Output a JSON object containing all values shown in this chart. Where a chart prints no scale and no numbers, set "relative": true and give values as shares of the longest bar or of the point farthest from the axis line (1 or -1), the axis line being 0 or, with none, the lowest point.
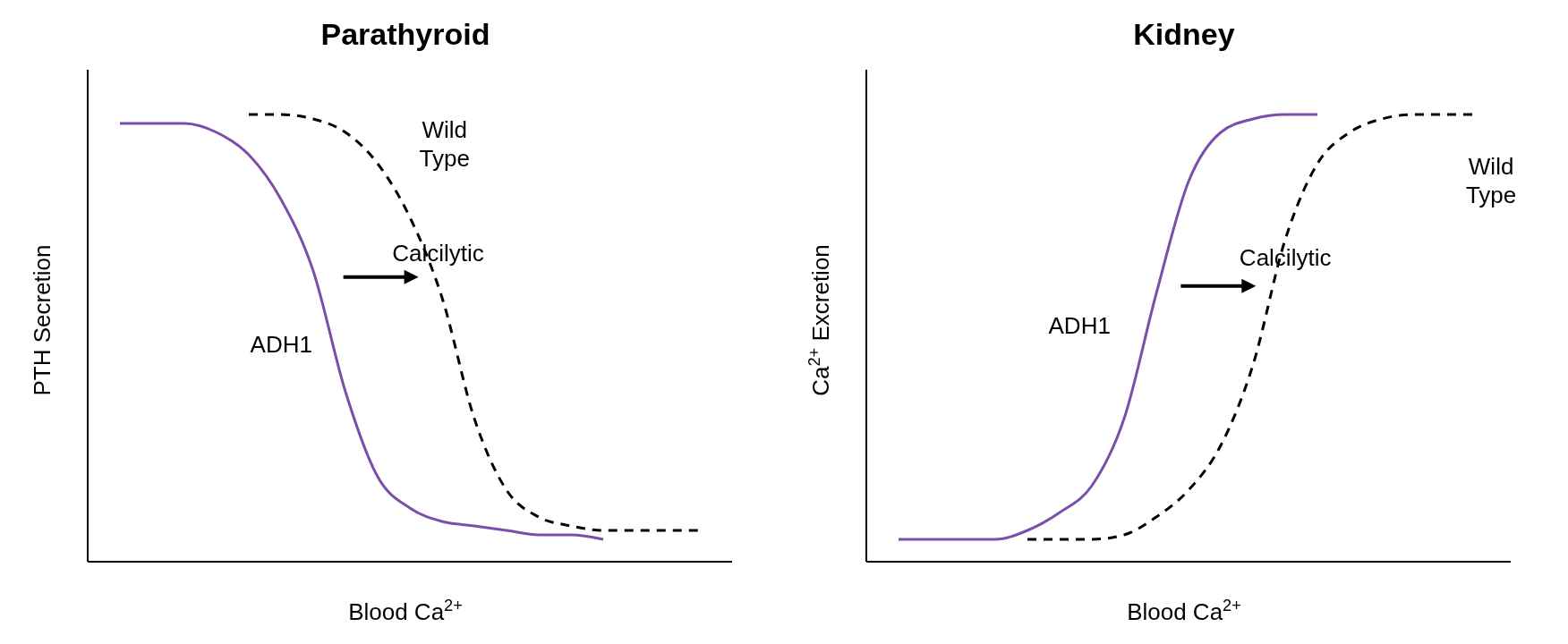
{
  "chart_data": [
    {
      "type": "line",
      "title": "Parathyroid",
      "xlabel": "Blood Ca$^{2+}$",
      "ylabel": "PTH Secretion",
      "relative": true,
      "categories": [
        null,
        null,
        null,
        null,
        null,
        null,
        null,
        null,
        null,
        null,
        null,
        null,
        null,
        null,
        null,
        null,
        null,
        null,
        null,
        null,
        null
      ],
      "annotations": [
        "Calcilytic"
      ],
      "series": [
        {
          "name": "ADH1",
          "color": "#7b4fa8",
          "line_style": "solid",
          "values": [
            null,
            0.98,
            0.98,
            0.98,
            0.96,
            0.91,
            0.81,
            0.65,
            0.38,
            0.19,
            0.12,
            0.09,
            0.08,
            0.07,
            0.06,
            0.06,
            0.05,
            null,
            null,
            null,
            null
          ]
        },
        {
          "name": "Wild Type",
          "color": "#000000",
          "line_style": "dashed",
          "values": [
            null,
            null,
            null,
            null,
            null,
            1.0,
            1.0,
            0.99,
            0.96,
            0.89,
            0.77,
            0.59,
            0.32,
            0.16,
            0.1,
            0.08,
            0.07,
            0.07,
            0.07,
            0.07,
            null
          ]
        }
      ]
    },
    {
      "type": "line",
      "title": "Kidney",
      "xlabel": "Blood Ca$^{2+}$",
      "ylabel": "Ca$^{2+}$ Excretion",
      "relative": true,
      "categories": [
        null,
        null,
        null,
        null,
        null,
        null,
        null,
        null,
        null,
        null,
        null,
        null,
        null,
        null,
        null,
        null,
        null,
        null,
        null,
        null,
        null
      ],
      "annotations": [
        "Calcilytic"
      ],
      "series": [
        {
          "name": "ADH1",
          "color": "#7b4fa8",
          "line_style": "solid",
          "values": [
            null,
            0.05,
            0.05,
            0.05,
            0.05,
            0.07,
            0.11,
            0.17,
            0.32,
            0.6,
            0.85,
            0.96,
            0.99,
            1.0,
            1.0,
            null,
            null,
            null,
            null,
            null,
            null
          ]
        },
        {
          "name": "Wild Type",
          "color": "#000000",
          "line_style": "dashed",
          "values": [
            null,
            null,
            null,
            null,
            null,
            0.05,
            0.05,
            0.05,
            0.06,
            0.1,
            0.16,
            0.26,
            0.44,
            0.72,
            0.89,
            0.96,
            0.99,
            1.0,
            1.0,
            1.0,
            null
          ]
        }
      ]
    }
  ]
}
